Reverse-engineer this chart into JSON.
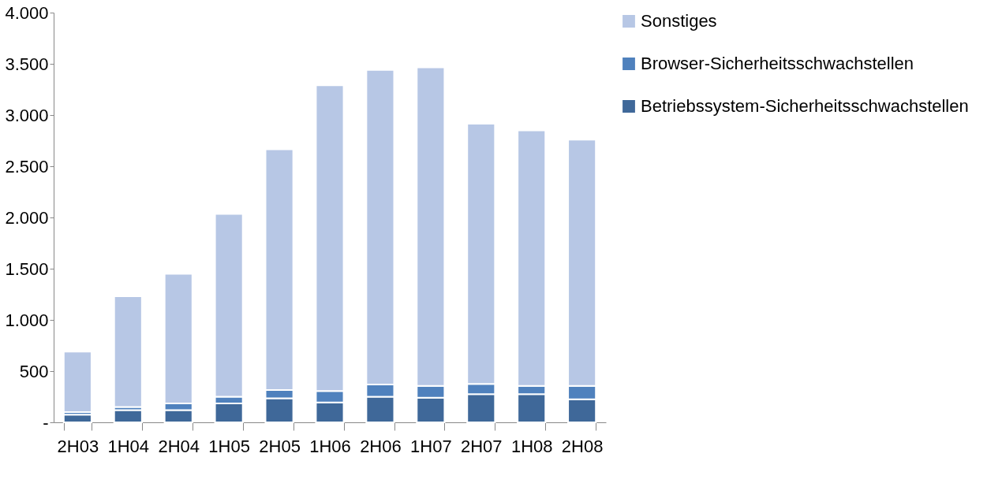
{
  "chart_data": {
    "type": "bar",
    "stacked": true,
    "categories": [
      "2H03",
      "1H04",
      "2H04",
      "1H05",
      "2H05",
      "1H06",
      "2H06",
      "1H07",
      "2H07",
      "1H08",
      "2H08"
    ],
    "series": [
      {
        "name": "Betriebssystem-Sicherheitsschwachstellen",
        "color": "#3f6899",
        "values": [
          75,
          120,
          120,
          185,
          235,
          195,
          250,
          240,
          275,
          275,
          225
        ]
      },
      {
        "name": "Browser-Sicherheitsschwachstellen",
        "color": "#4f81bd",
        "values": [
          25,
          30,
          65,
          65,
          80,
          110,
          120,
          115,
          100,
          80,
          130
        ]
      },
      {
        "name": "Sonstiges",
        "color": "#b7c7e5",
        "values": [
          590,
          1080,
          1265,
          1785,
          2350,
          2985,
          3070,
          3110,
          2540,
          2495,
          2405
        ]
      }
    ],
    "ylim": [
      0,
      4000
    ],
    "yticks": [
      {
        "value": 0,
        "label": "-"
      },
      {
        "value": 500,
        "label": "500"
      },
      {
        "value": 1000,
        "label": "1.000"
      },
      {
        "value": 1500,
        "label": "1.500"
      },
      {
        "value": 2000,
        "label": "2.000"
      },
      {
        "value": 2500,
        "label": "2.500"
      },
      {
        "value": 3000,
        "label": "3.000"
      },
      {
        "value": 3500,
        "label": "3.500"
      },
      {
        "value": 4000,
        "label": "4.000"
      }
    ],
    "grid": false,
    "legend": "right"
  }
}
